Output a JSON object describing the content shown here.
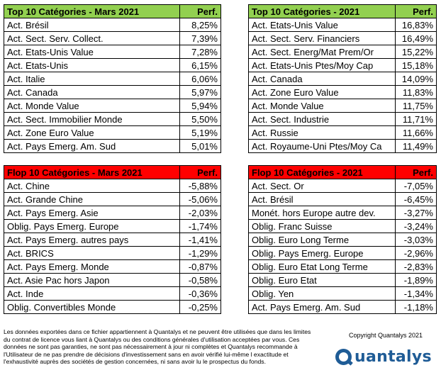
{
  "tables": {
    "top_mars": {
      "title": "Top 10 Catégories - Mars 2021",
      "perf_header": "Perf.",
      "rows": [
        {
          "name": "Act. Brésil",
          "value": "8,25%"
        },
        {
          "name": "Act. Sect. Serv. Collect.",
          "value": "7,39%"
        },
        {
          "name": "Act. Etats-Unis Value",
          "value": "7,28%"
        },
        {
          "name": "Act. Etats-Unis",
          "value": "6,15%"
        },
        {
          "name": "Act. Italie",
          "value": "6,06%"
        },
        {
          "name": "Act. Canada",
          "value": "5,97%"
        },
        {
          "name": "Act. Monde Value",
          "value": "5,94%"
        },
        {
          "name": "Act. Sect. Immobilier Monde",
          "value": "5,50%"
        },
        {
          "name": "Act. Zone Euro Value",
          "value": "5,19%"
        },
        {
          "name": "Act. Pays Emerg. Am. Sud",
          "value": "5,01%"
        }
      ]
    },
    "top_2021": {
      "title": "Top 10 Catégories - 2021",
      "perf_header": "Perf.",
      "rows": [
        {
          "name": "Act. Etats-Unis Value",
          "value": "16,83%"
        },
        {
          "name": "Act. Sect. Serv. Financiers",
          "value": "16,49%"
        },
        {
          "name": "Act. Sect. Energ/Mat Prem/Or",
          "value": "15,22%"
        },
        {
          "name": "Act. Etats-Unis Ptes/Moy Cap",
          "value": "15,18%"
        },
        {
          "name": "Act. Canada",
          "value": "14,09%"
        },
        {
          "name": "Act. Zone Euro Value",
          "value": "11,83%"
        },
        {
          "name": "Act. Monde Value",
          "value": "11,75%"
        },
        {
          "name": "Act. Sect. Industrie",
          "value": "11,71%"
        },
        {
          "name": "Act. Russie",
          "value": "11,66%"
        },
        {
          "name": "Act. Royaume-Uni Ptes/Moy Ca",
          "value": "11,49%"
        }
      ]
    },
    "flop_mars": {
      "title": "Flop 10 Catégories - Mars 2021",
      "perf_header": "Perf.",
      "rows": [
        {
          "name": "Act. Chine",
          "value": "-5,88%"
        },
        {
          "name": "Act. Grande Chine",
          "value": "-5,06%"
        },
        {
          "name": "Act. Pays Emerg. Asie",
          "value": "-2,03%"
        },
        {
          "name": "Oblig. Pays Emerg. Europe",
          "value": "-1,74%"
        },
        {
          "name": "Act. Pays Emerg. autres pays",
          "value": "-1,41%"
        },
        {
          "name": "Act. BRICS",
          "value": "-1,29%"
        },
        {
          "name": "Act. Pays Emerg. Monde",
          "value": "-0,87%"
        },
        {
          "name": "Act. Asie Pac hors Japon",
          "value": "-0,58%"
        },
        {
          "name": "Act. Inde",
          "value": "-0,36%"
        },
        {
          "name": "Oblig. Convertibles Monde",
          "value": "-0,25%"
        }
      ]
    },
    "flop_2021": {
      "title": "Flop 10 Catégories - 2021",
      "perf_header": "Perf.",
      "rows": [
        {
          "name": "Act. Sect. Or",
          "value": "-7,05%"
        },
        {
          "name": "Act. Brésil",
          "value": "-6,45%"
        },
        {
          "name": "Monét. hors Europe autre dev.",
          "value": "-3,27%"
        },
        {
          "name": "Oblig. Franc Suisse",
          "value": "-3,24%"
        },
        {
          "name": "Oblig. Euro Long Terme",
          "value": "-3,03%"
        },
        {
          "name": "Oblig. Pays Emerg. Europe",
          "value": "-2,96%"
        },
        {
          "name": "Oblig. Euro Etat Long Terme",
          "value": "-2,83%"
        },
        {
          "name": "Oblig. Euro Etat",
          "value": "-1,89%"
        },
        {
          "name": "Oblig. Yen",
          "value": "-1,34%"
        },
        {
          "name": "Act. Pays Emerg. Am. Sud",
          "value": "-1,18%"
        }
      ]
    }
  },
  "colors": {
    "top_header": "#92d050",
    "flop_header": "#ff0000",
    "brand": "#1f5c96"
  },
  "footer": {
    "disclaimer": "Les données exportées dans ce fichier appartiennent à Quantalys et ne peuvent être utilisées que dans les limites du contrat de licence vous liant à Quantalys ou des conditions générales d'utilisation acceptées par vous. Ces données ne sont pas garanties, ne sont pas nécessairement à jour ni complètes et Quantalys recommande à l'Utilisateur de ne pas prendre de décisions d'investissement sans en avoir vérifié lui-même l exactitude et l'exhaustivité auprès des sociétés de gestion concernées, ni sans avoir lu le prospectus du fonds.",
    "copyright": "Copyright Quantalys 2021",
    "logo_text": "uantalys",
    "logo_icon": "quantalys-q-logo-icon"
  }
}
